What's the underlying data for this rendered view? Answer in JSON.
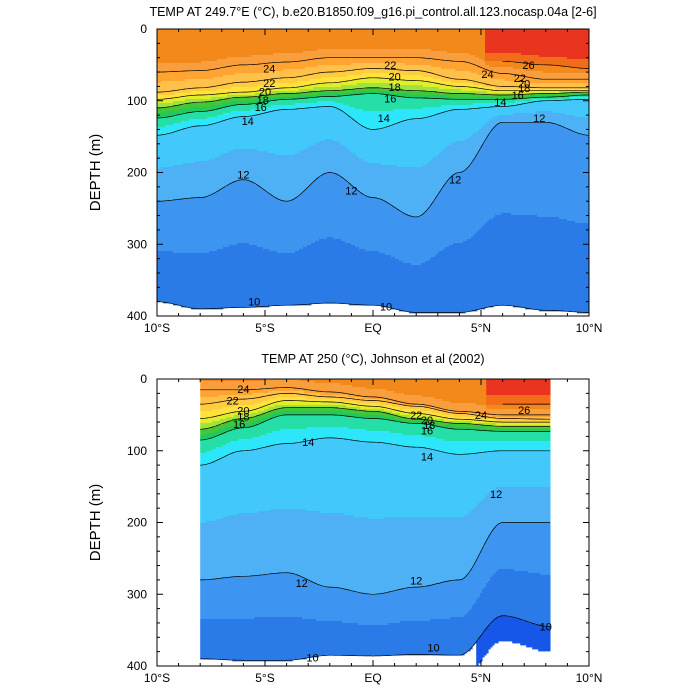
{
  "chart_data": [
    {
      "type": "contour",
      "title": "TEMP AT 249.7°E (°C), b.e20.B1850.f09_g16.pi_control.all.123.nocasp.04a [2-6]",
      "xlabel": "",
      "ylabel": "DEPTH (m)",
      "xlim": [
        -10,
        10
      ],
      "ylim": [
        400,
        0
      ],
      "x_ticks": [
        -10,
        -5,
        0,
        5,
        10
      ],
      "x_tick_labels": [
        "10°S",
        "5°S",
        "EQ",
        "5°N",
        "10°N"
      ],
      "y_ticks": [
        0,
        100,
        200,
        300,
        400
      ],
      "y_tick_labels": [
        "0",
        "100",
        "200",
        "300",
        "400"
      ],
      "data_x_range": [
        -10,
        10
      ],
      "isotherm_depths": {
        "x": [
          -10,
          -8,
          -6,
          -4,
          -2,
          0,
          2,
          4,
          6,
          8,
          10
        ],
        "26": [
          null,
          null,
          null,
          null,
          null,
          null,
          null,
          null,
          45,
          50,
          55
        ],
        "24": [
          60,
          58,
          50,
          46,
          40,
          40,
          40,
          45,
          62,
          70,
          70
        ],
        "22": [
          88,
          82,
          74,
          68,
          60,
          55,
          58,
          70,
          80,
          82,
          82
        ],
        "20": [
          98,
          92,
          88,
          82,
          75,
          68,
          72,
          80,
          86,
          86,
          86
        ],
        "18": [
          110,
          102,
          95,
          90,
          86,
          82,
          86,
          90,
          92,
          90,
          88
        ],
        "16": [
          124,
          115,
          105,
          98,
          94,
          90,
          96,
          98,
          98,
          95,
          92
        ],
        "14": [
          148,
          135,
          122,
          112,
          108,
          140,
          125,
          112,
          108,
          100,
          98
        ],
        "12": [
          240,
          235,
          210,
          240,
          200,
          235,
          262,
          200,
          130,
          130,
          148
        ],
        "10": [
          380,
          390,
          388,
          385,
          382,
          385,
          395,
          395,
          385,
          392,
          395
        ]
      },
      "contour_labels": [
        {
          "text": "24",
          "x": -4.8,
          "y": 55
        },
        {
          "text": "22",
          "x": 0.8,
          "y": 50
        },
        {
          "text": "24",
          "x": 5.3,
          "y": 63
        },
        {
          "text": "26",
          "x": 7.2,
          "y": 50
        },
        {
          "text": "22",
          "x": -4.8,
          "y": 75
        },
        {
          "text": "20",
          "x": 1.0,
          "y": 66
        },
        {
          "text": "22",
          "x": 6.8,
          "y": 68
        },
        {
          "text": "20",
          "x": -5.0,
          "y": 87
        },
        {
          "text": "18",
          "x": 1.0,
          "y": 81
        },
        {
          "text": "20",
          "x": 7.0,
          "y": 76
        },
        {
          "text": "18",
          "x": -5.1,
          "y": 99
        },
        {
          "text": "18",
          "x": 7.0,
          "y": 82
        },
        {
          "text": "16",
          "x": -5.2,
          "y": 109
        },
        {
          "text": "16",
          "x": 0.8,
          "y": 97
        },
        {
          "text": "16",
          "x": 6.7,
          "y": 92
        },
        {
          "text": "14",
          "x": 5.9,
          "y": 102
        },
        {
          "text": "14",
          "x": -5.8,
          "y": 128
        },
        {
          "text": "14",
          "x": 0.5,
          "y": 124
        },
        {
          "text": "12",
          "x": 7.7,
          "y": 124
        },
        {
          "text": "12",
          "x": -6.0,
          "y": 203
        },
        {
          "text": "12",
          "x": -1.0,
          "y": 225
        },
        {
          "text": "12",
          "x": 3.8,
          "y": 210
        },
        {
          "text": "10",
          "x": -5.5,
          "y": 380
        },
        {
          "text": "10",
          "x": 0.6,
          "y": 387
        }
      ]
    },
    {
      "type": "contour",
      "title": "TEMP AT 250 (°C), Johnson et al (2002)",
      "xlabel": "",
      "ylabel": "DEPTH (m)",
      "xlim": [
        -10,
        10
      ],
      "ylim": [
        400,
        0
      ],
      "x_ticks": [
        -10,
        -5,
        0,
        5,
        10
      ],
      "x_tick_labels": [
        "10°S",
        "5°S",
        "EQ",
        "5°N",
        "10°N"
      ],
      "y_ticks": [
        0,
        100,
        200,
        300,
        400
      ],
      "y_tick_labels": [
        "0",
        "100",
        "200",
        "300",
        "400"
      ],
      "data_x_range": [
        -8,
        8.2
      ],
      "isotherm_depths": {
        "x": [
          -8,
          -6,
          -4,
          -2,
          0,
          2,
          4,
          6,
          8.2
        ],
        "26": [
          null,
          null,
          null,
          null,
          null,
          null,
          null,
          35,
          35
        ],
        "24": [
          15,
          15,
          12,
          18,
          25,
          35,
          45,
          50,
          50
        ],
        "22": [
          35,
          28,
          20,
          25,
          30,
          38,
          48,
          55,
          56
        ],
        "20": [
          55,
          45,
          30,
          32,
          38,
          48,
          56,
          60,
          60
        ],
        "18": [
          70,
          55,
          40,
          40,
          45,
          56,
          62,
          66,
          66
        ],
        "16": [
          85,
          68,
          50,
          50,
          55,
          62,
          70,
          73,
          73
        ],
        "14": [
          120,
          100,
          90,
          82,
          88,
          95,
          105,
          100,
          100
        ],
        "12": [
          280,
          275,
          270,
          290,
          300,
          290,
          280,
          200,
          200
        ],
        "10": [
          390,
          392,
          392,
          385,
          386,
          384,
          385,
          330,
          345
        ]
      },
      "contour_labels": [
        {
          "text": "24",
          "x": -6.0,
          "y": 14
        },
        {
          "text": "22",
          "x": -6.5,
          "y": 30
        },
        {
          "text": "20",
          "x": -6.0,
          "y": 44
        },
        {
          "text": "18",
          "x": -6.0,
          "y": 52
        },
        {
          "text": "16",
          "x": -6.2,
          "y": 63
        },
        {
          "text": "22",
          "x": 2.0,
          "y": 50
        },
        {
          "text": "20",
          "x": 2.5,
          "y": 57
        },
        {
          "text": "18",
          "x": 2.6,
          "y": 64
        },
        {
          "text": "16",
          "x": 2.5,
          "y": 72
        },
        {
          "text": "24",
          "x": 5.0,
          "y": 50
        },
        {
          "text": "26",
          "x": 7.0,
          "y": 43
        },
        {
          "text": "14",
          "x": -3.0,
          "y": 88
        },
        {
          "text": "14",
          "x": 2.5,
          "y": 108
        },
        {
          "text": "12",
          "x": 5.7,
          "y": 160
        },
        {
          "text": "12",
          "x": -3.3,
          "y": 284
        },
        {
          "text": "12",
          "x": 2.0,
          "y": 281
        },
        {
          "text": "10",
          "x": 8.0,
          "y": 345
        },
        {
          "text": "10",
          "x": -2.8,
          "y": 388
        },
        {
          "text": "10",
          "x": 2.8,
          "y": 374
        }
      ]
    }
  ],
  "colorscale": {
    "levels": [
      8,
      9,
      10,
      11,
      12,
      13,
      14,
      15,
      16,
      17,
      18,
      19,
      20,
      21,
      22,
      23,
      24,
      25,
      26,
      27
    ],
    "colors": [
      "#0b24d9",
      "#1656e8",
      "#2a7ae8",
      "#3d95f0",
      "#4fb1f5",
      "#43c8fb",
      "#2ee6fb",
      "#25dea8",
      "#20c85f",
      "#3ec83a",
      "#9ee33e",
      "#e0ef2c",
      "#ffe23a",
      "#ffcc40",
      "#ffc14a",
      "#ffa430",
      "#f99e3c",
      "#f3891a",
      "#f26d1a",
      "#e9341f"
    ]
  }
}
